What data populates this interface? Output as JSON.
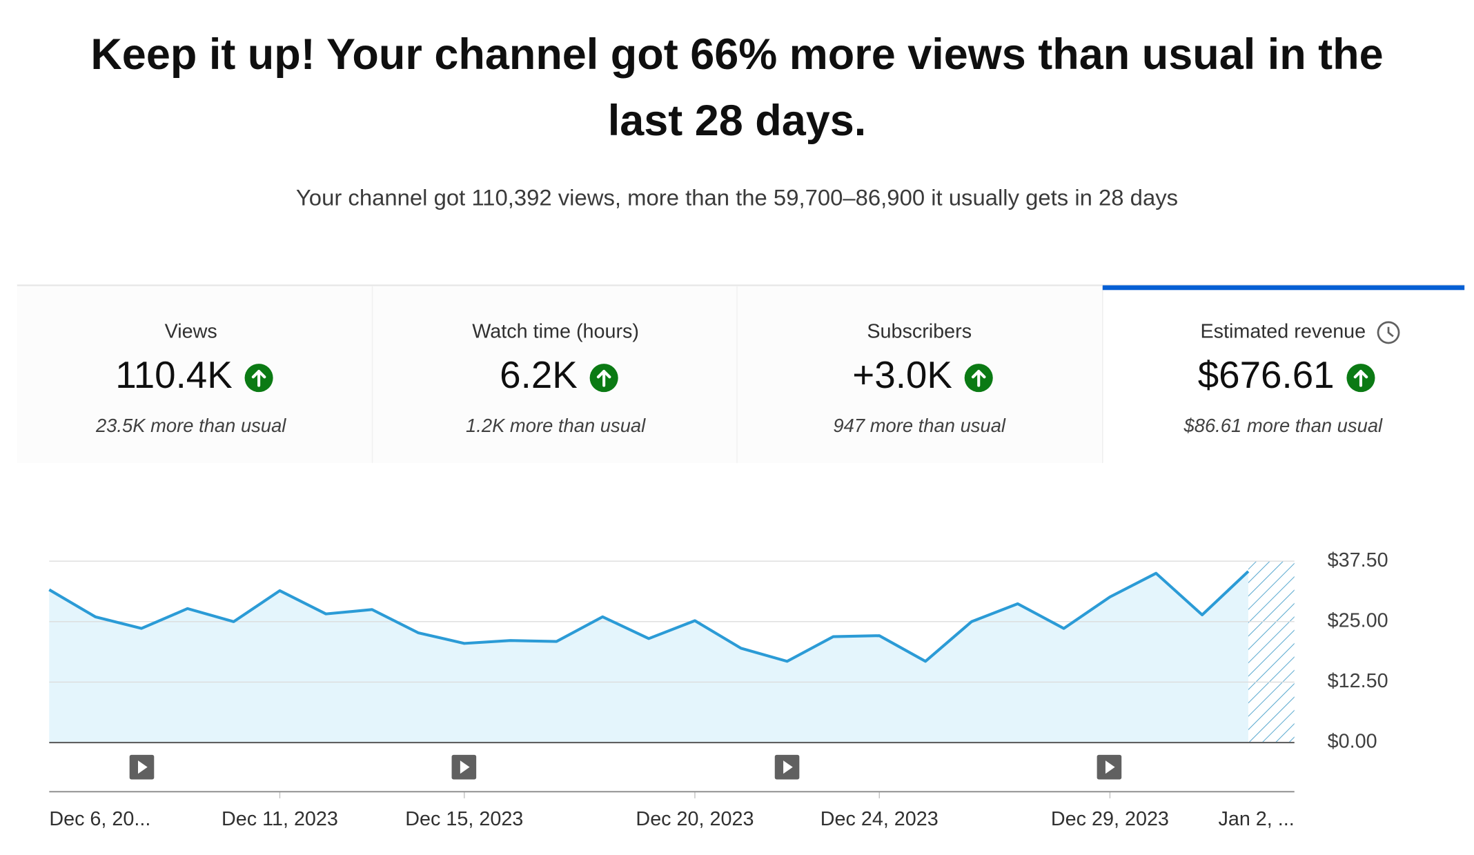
{
  "header": {
    "title": "Keep it up! Your channel got 66% more views than usual in the last 28 days.",
    "subtitle": "Your channel got 110,392 views, more than the 59,700–86,900 it usually gets in 28 days"
  },
  "cards": [
    {
      "label": "Views",
      "value": "110.4K",
      "delta": "23.5K more than usual"
    },
    {
      "label": "Watch time (hours)",
      "value": "6.2K",
      "delta": "1.2K more than usual"
    },
    {
      "label": "Subscribers",
      "value": "+3.0K",
      "delta": "947 more than usual"
    },
    {
      "label": "Estimated revenue",
      "value": "$676.61",
      "delta": "$86.61 more than usual"
    }
  ],
  "chart_data": {
    "type": "line",
    "categories": [
      "Dec 6, 20...",
      null,
      null,
      null,
      null,
      "Dec 11, 2023",
      null,
      null,
      null,
      "Dec 15, 2023",
      null,
      null,
      null,
      null,
      "Dec 20, 2023",
      null,
      null,
      null,
      "Dec 24, 2023",
      null,
      null,
      null,
      null,
      "Dec 29, 2023",
      null,
      null,
      null,
      "Jan 2, ..."
    ],
    "values": [
      31.6,
      26.0,
      23.6,
      27.7,
      25.0,
      31.4,
      26.6,
      27.5,
      22.7,
      20.5,
      21.1,
      20.9,
      26.0,
      21.5,
      25.2,
      19.5,
      16.8,
      21.9,
      22.1,
      16.8,
      25.0,
      28.7,
      23.6,
      30.1,
      35.0,
      26.4,
      35.4,
      null
    ],
    "color": "#2b9bd6",
    "ylim": [
      0,
      37.5
    ],
    "yticks": [
      {
        "value": 0,
        "label": "$0.00"
      },
      {
        "value": 12.5,
        "label": "$12.50"
      },
      {
        "value": 25,
        "label": "$25.00"
      },
      {
        "value": 37.5,
        "label": "$37.50"
      }
    ],
    "grid": true
  }
}
